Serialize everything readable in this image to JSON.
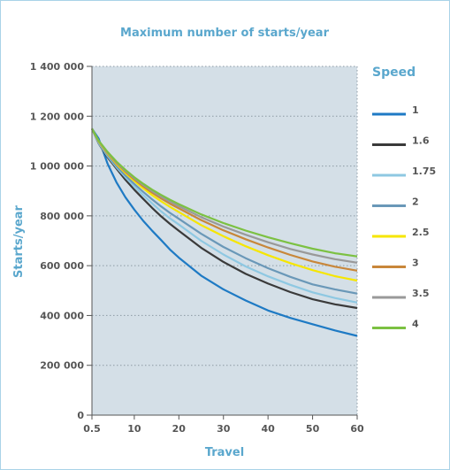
{
  "chart_data": {
    "type": "line",
    "title": "Maximum number of starts/year",
    "xlabel": "Travel",
    "ylabel": "Starts/year",
    "legend_title": "Speed",
    "legend_position": "right",
    "grid": true,
    "background_color": "#d4dfe7",
    "xlim": [
      0.5,
      60
    ],
    "ylim": [
      0,
      1400000
    ],
    "x_ticks": [
      0.5,
      10,
      20,
      30,
      40,
      50,
      60
    ],
    "x_tick_labels": [
      "0.5",
      "10",
      "20",
      "30",
      "40",
      "50",
      "60"
    ],
    "y_ticks": [
      0,
      200000,
      400000,
      600000,
      800000,
      1000000,
      1200000,
      1400000
    ],
    "y_tick_labels": [
      "0",
      "200 000",
      "400 000",
      "600 000",
      "800 000",
      "1 000 000",
      "1 200 000",
      "1 400 000"
    ],
    "x": [
      0.5,
      2,
      4,
      6,
      8,
      10,
      12,
      14,
      16,
      18,
      20,
      25,
      30,
      35,
      40,
      45,
      50,
      55,
      60
    ],
    "series": [
      {
        "name": "1",
        "color": "#1e7ac4",
        "values": [
          1150000,
          1110000,
          1010000,
          935000,
          875000,
          825000,
          780000,
          740000,
          703000,
          665000,
          632000,
          560000,
          505000,
          460000,
          420000,
          390000,
          365000,
          340000,
          318000
        ]
      },
      {
        "name": "1.6",
        "color": "#3a3a3a",
        "values": [
          1150000,
          1090000,
          1035000,
          990000,
          945000,
          905000,
          868000,
          832000,
          798000,
          768000,
          740000,
          672000,
          615000,
          567000,
          528000,
          494000,
          465000,
          445000,
          430000
        ]
      },
      {
        "name": "1.75",
        "color": "#8ec8e2",
        "values": [
          1150000,
          1092000,
          1040000,
          995000,
          955000,
          918000,
          883000,
          850000,
          818000,
          790000,
          765000,
          700000,
          645000,
          597000,
          557000,
          523000,
          493000,
          470000,
          452000
        ]
      },
      {
        "name": "2",
        "color": "#6a98b8",
        "values": [
          1150000,
          1095000,
          1045000,
          1000000,
          962000,
          928000,
          896000,
          866000,
          838000,
          812000,
          788000,
          728000,
          675000,
          630000,
          590000,
          555000,
          525000,
          505000,
          488000
        ]
      },
      {
        "name": "2.5",
        "color": "#f6e600",
        "values": [
          1150000,
          1098000,
          1050000,
          1008000,
          972000,
          940000,
          910000,
          883000,
          859000,
          836000,
          815000,
          763000,
          718000,
          678000,
          642000,
          610000,
          582000,
          558000,
          540000
        ]
      },
      {
        "name": "3",
        "color": "#c8873a",
        "values": [
          1150000,
          1100000,
          1053000,
          1012000,
          977000,
          946000,
          918000,
          893000,
          870000,
          849000,
          830000,
          783000,
          742000,
          706000,
          673000,
          643000,
          617000,
          596000,
          580000
        ]
      },
      {
        "name": "3.5",
        "color": "#999999",
        "values": [
          1150000,
          1101000,
          1055000,
          1015000,
          981000,
          951000,
          924000,
          899000,
          877000,
          857000,
          839000,
          795000,
          757000,
          724000,
          694000,
          667000,
          645000,
          626000,
          612000
        ]
      },
      {
        "name": "4",
        "color": "#7cc142",
        "values": [
          1150000,
          1102000,
          1057000,
          1018000,
          985000,
          955000,
          929000,
          905000,
          884000,
          865000,
          847000,
          806000,
          771000,
          741000,
          714000,
          690000,
          668000,
          650000,
          637000
        ]
      }
    ]
  }
}
